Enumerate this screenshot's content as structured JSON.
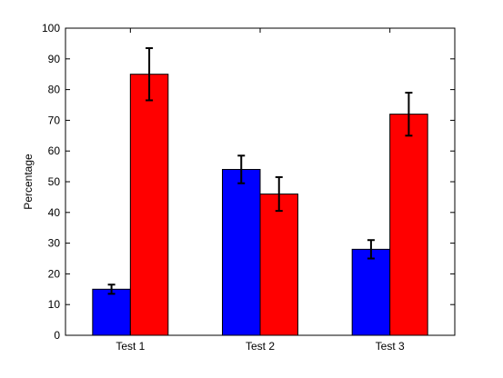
{
  "chart_data": {
    "type": "bar",
    "title": "",
    "xlabel": "",
    "ylabel": "Percentage",
    "categories": [
      "Test 1",
      "Test 2",
      "Test 3"
    ],
    "ylim": [
      0,
      100
    ],
    "yticks": [
      0,
      10,
      20,
      30,
      40,
      50,
      60,
      70,
      80,
      90,
      100
    ],
    "grid": false,
    "legend": null,
    "series": [
      {
        "values": [
          15,
          54,
          28
        ],
        "errors": [
          1.5,
          4.5,
          3
        ],
        "color": "#0000ff"
      },
      {
        "values": [
          85,
          46,
          72
        ],
        "errors": [
          8.5,
          5.5,
          7
        ],
        "color": "#ff0000"
      }
    ]
  }
}
